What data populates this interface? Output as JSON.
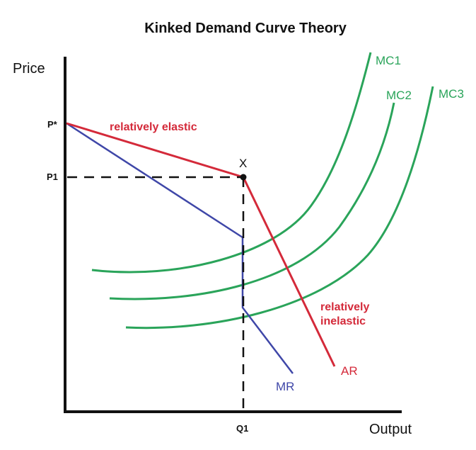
{
  "title": "Kinked Demand Curve Theory",
  "axes": {
    "y_label": "Price",
    "x_label": "Output"
  },
  "points": {
    "p_star": "P*",
    "p1": "P1",
    "q1": "Q1",
    "kink": "X"
  },
  "regions": {
    "elastic": "relatively elastic",
    "inelastic_line1": "relatively",
    "inelastic_line2": "inelastic"
  },
  "curves": {
    "ar": "AR",
    "mr": "MR",
    "mc": [
      "MC1",
      "MC2",
      "MC3"
    ]
  },
  "colors": {
    "demand": "#d42a3a",
    "marginal_revenue": "#3f47a8",
    "marginal_cost": "#2aa45a",
    "axis": "#111111"
  }
}
